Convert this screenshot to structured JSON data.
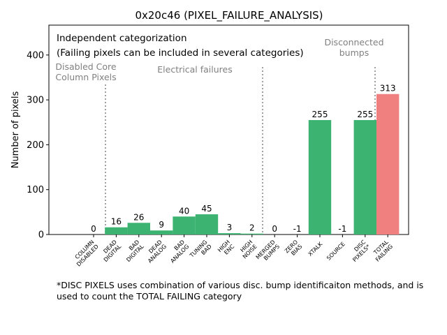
{
  "chart_data": {
    "type": "bar",
    "title": "0x20c46 (PIXEL_FAILURE_ANALYSIS)",
    "ylabel": "Number of pixels",
    "xlabel": "",
    "ylim": [
      0,
      470
    ],
    "yticks": [
      0,
      100,
      200,
      300,
      400
    ],
    "grid": false,
    "categories": [
      "COLUMN\nDISABLED",
      "DEAD\nDIGITAL",
      "BAD\nDIGITAL",
      "DEAD\nANALOG",
      "BAD\nANALOG",
      "TUNING\nBAD",
      "HIGH\nENC",
      "HIGH\nNOISE",
      "MERGED\nBUMPS",
      "ZERO\nBIAS",
      "XTALK",
      "SOURCE",
      "DISC\nPIXELS*",
      "TOTAL\nFAILING"
    ],
    "values": [
      0,
      16,
      26,
      9,
      40,
      45,
      3,
      2,
      0,
      -1,
      255,
      -1,
      255,
      313
    ],
    "data_labels": [
      "0",
      "16",
      "26",
      "9",
      "40",
      "45",
      "3",
      "2",
      "0",
      "-1",
      "255",
      "-1",
      "255",
      "313"
    ],
    "bar_colors": [
      "#3cb371",
      "#3cb371",
      "#3cb371",
      "#3cb371",
      "#3cb371",
      "#3cb371",
      "#3cb371",
      "#3cb371",
      "#3cb371",
      "#3cb371",
      "#3cb371",
      "#3cb371",
      "#3cb371",
      "#f08080"
    ],
    "annotations": {
      "line1": "Independent categorization",
      "line2": "(Failing pixels can be included in several categories)"
    },
    "groups": [
      {
        "label": "Disabled Core\nColumn Pixels"
      },
      {
        "label": "Electrical failures"
      },
      {
        "label": "Disconnected\nbumps"
      }
    ],
    "footnote": "*DISC PIXELS uses combination of various disc. bump identificaiton methods, and is used to count the TOTAL FAILING category"
  }
}
